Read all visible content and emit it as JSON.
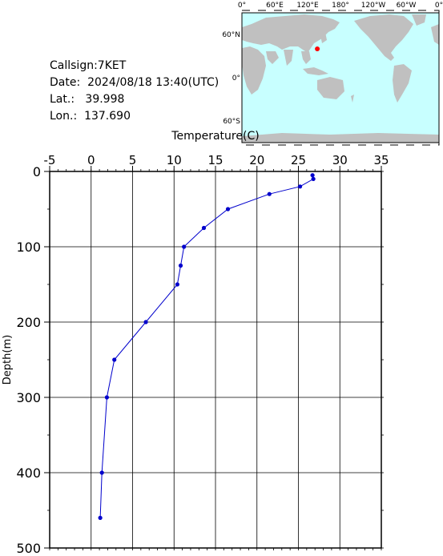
{
  "station": {
    "callsign_label": "Callsign:",
    "callsign": "7KET",
    "date_label": "Date:",
    "date": "2024/08/18 13:40(UTC)",
    "lat_label": "Lat.:",
    "lat": "39.998",
    "lon_label": "Lon.:",
    "lon": "137.690"
  },
  "map": {
    "lon_ticks": [
      "0°",
      "60°E",
      "120°E",
      "180°",
      "120°W",
      "60°W",
      "0°"
    ],
    "lat_ticks": [
      "60°N",
      "0°",
      "60°S"
    ],
    "ocean_color": "#c8ffff",
    "land_color": "#c0c0c0",
    "marker_color": "#ff0000",
    "marker_lat": 39.998,
    "marker_lon": 137.69
  },
  "chart_data": {
    "type": "line",
    "xlabel": "Temperature(C)",
    "ylabel": "Depth(m)",
    "xlim": [
      -5,
      35
    ],
    "ylim": [
      0,
      500
    ],
    "x_ticks": [
      -5,
      0,
      5,
      10,
      15,
      20,
      25,
      30,
      35
    ],
    "y_ticks": [
      0,
      100,
      200,
      300,
      400,
      500
    ],
    "y_inverted": true,
    "grid": true,
    "series": [
      {
        "color": "#0000cc",
        "points": [
          {
            "t": 26.7,
            "d": 5
          },
          {
            "t": 26.8,
            "d": 10
          },
          {
            "t": 25.2,
            "d": 20
          },
          {
            "t": 21.5,
            "d": 30
          },
          {
            "t": 16.5,
            "d": 50
          },
          {
            "t": 13.6,
            "d": 75
          },
          {
            "t": 11.2,
            "d": 100
          },
          {
            "t": 10.8,
            "d": 125
          },
          {
            "t": 10.4,
            "d": 150
          },
          {
            "t": 6.6,
            "d": 200
          },
          {
            "t": 2.8,
            "d": 250
          },
          {
            "t": 1.9,
            "d": 300
          },
          {
            "t": 1.3,
            "d": 400
          },
          {
            "t": 1.1,
            "d": 460
          }
        ]
      }
    ]
  }
}
